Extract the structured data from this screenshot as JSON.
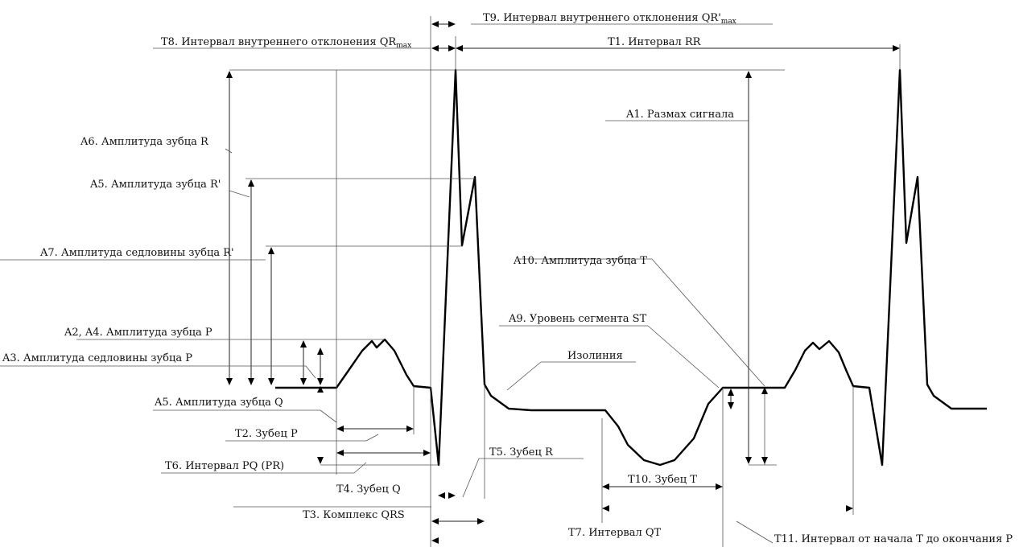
{
  "labels": {
    "t8": "T8. Интервал внутреннего отклонения QR",
    "t8_sub": "max",
    "t9": "T9. Интервал внутреннего отклонения QR'",
    "t9_sub": "max",
    "t1": "T1. Интервал RR",
    "a6": "A6. Амплитуда зубца R",
    "a5r": "A5. Амплитуда зубца R'",
    "a7": "A7. Амплитуда седловины зубца R'",
    "a1": "A1. Размах сигнала",
    "a10": "A10. Амплитуда зубца T",
    "a2a4": "A2, A4. Амплитуда зубца P",
    "a3": "A3. Амплитуда седловины зубца P",
    "a9": "A9. Уровень сегмента ST",
    "isoline": "Изолиния",
    "a5q": "A5. Амплитуда зубца Q",
    "t2": "T2. Зубец P",
    "t6": "T6. Интервал PQ (PR)",
    "t5": "T5. Зубец R",
    "t4": "T4. Зубец Q",
    "t10": "T10. Зубец T",
    "t3": "T3. Комплекс QRS",
    "t7": "T7. Интервал QT",
    "t11": "T11. Интервал от начала T до окончания P"
  }
}
